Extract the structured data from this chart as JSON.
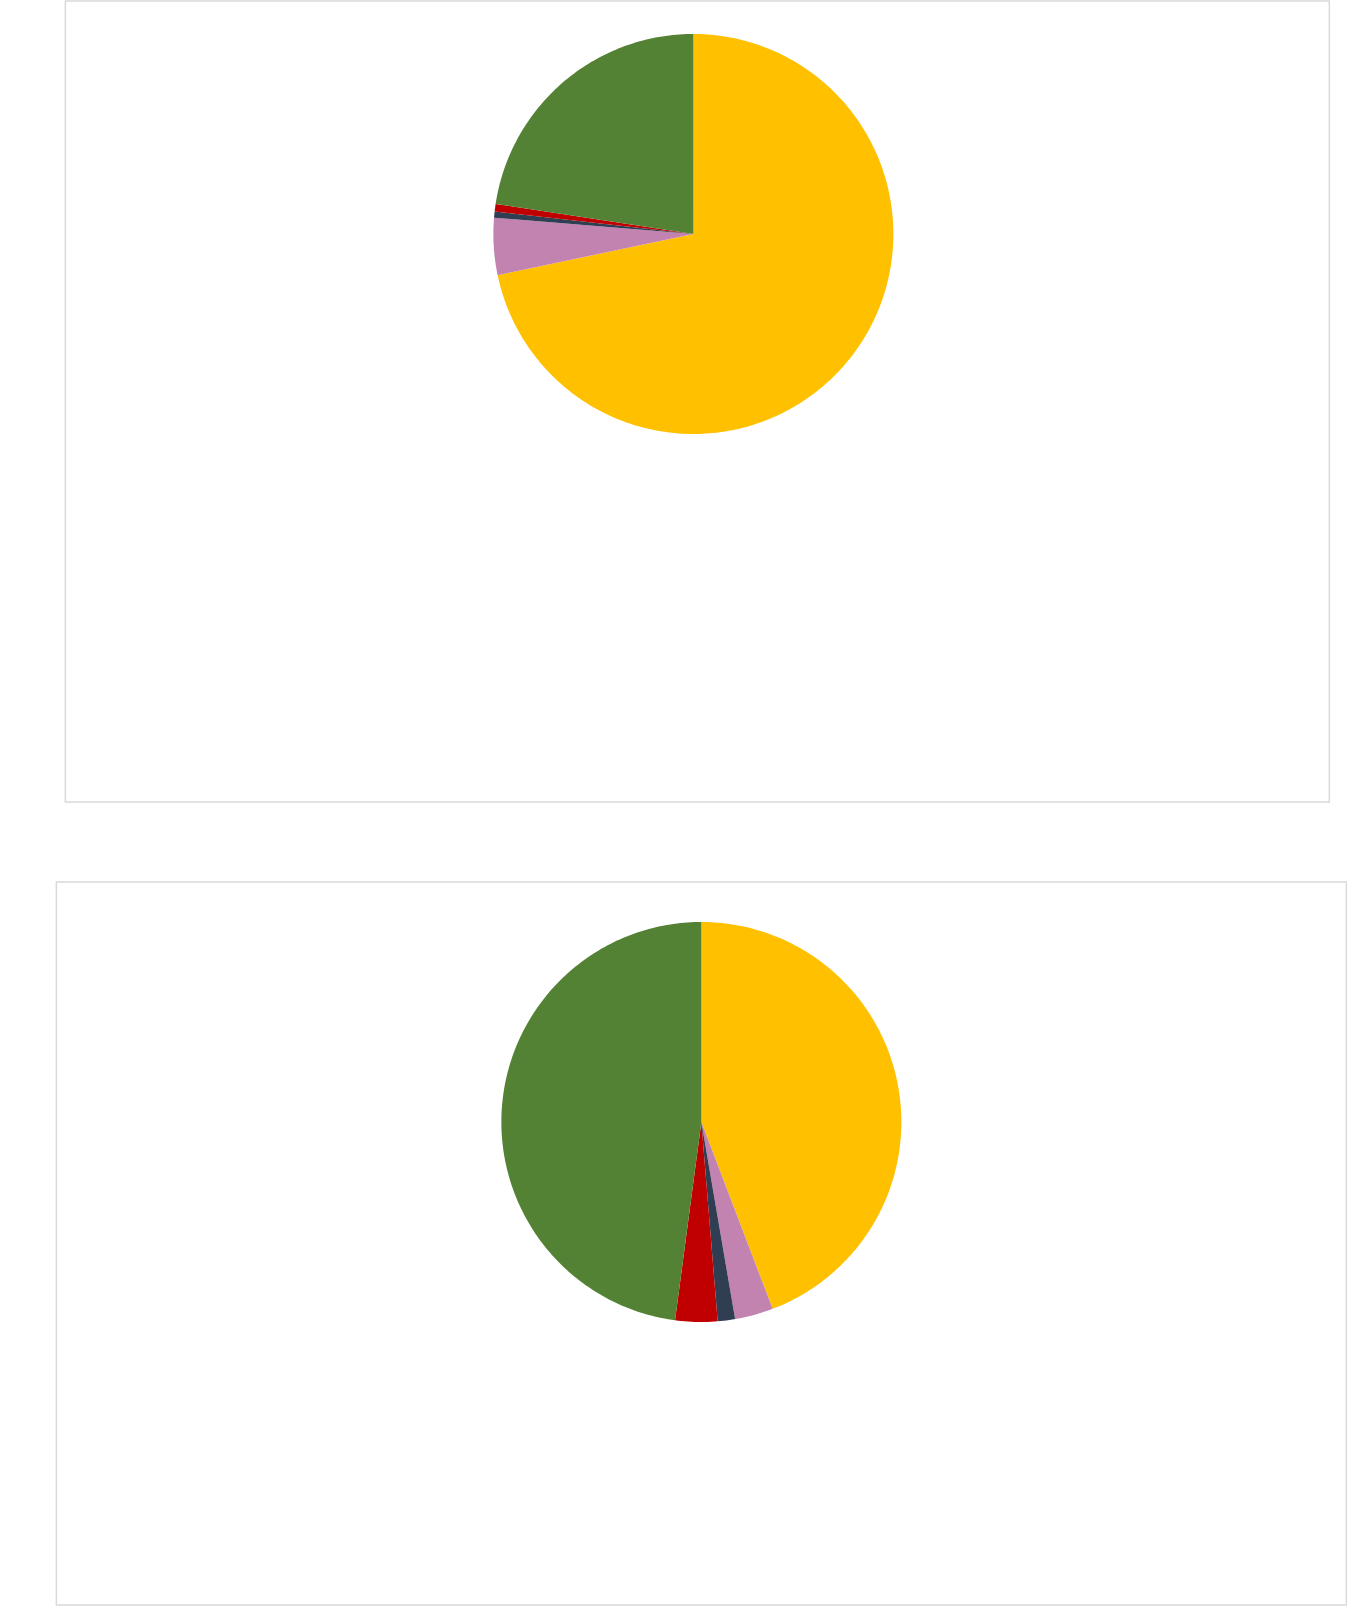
{
  "chart_data": [
    {
      "type": "pie",
      "categories": [
        null,
        null,
        null,
        null,
        null
      ],
      "values": [
        71.7,
        4.6,
        0.5,
        0.6,
        22.6
      ],
      "colors": [
        "#FFC000",
        "#C283B1",
        "#2F3E52",
        "#C00000",
        "#548235"
      ]
    },
    {
      "type": "pie",
      "categories": [
        null,
        null,
        null,
        null,
        null
      ],
      "values": [
        44.2,
        3.1,
        1.4,
        3.4,
        47.9
      ],
      "colors": [
        "#FFC000",
        "#C283B1",
        "#2F3E52",
        "#C00000",
        "#548235"
      ]
    }
  ]
}
